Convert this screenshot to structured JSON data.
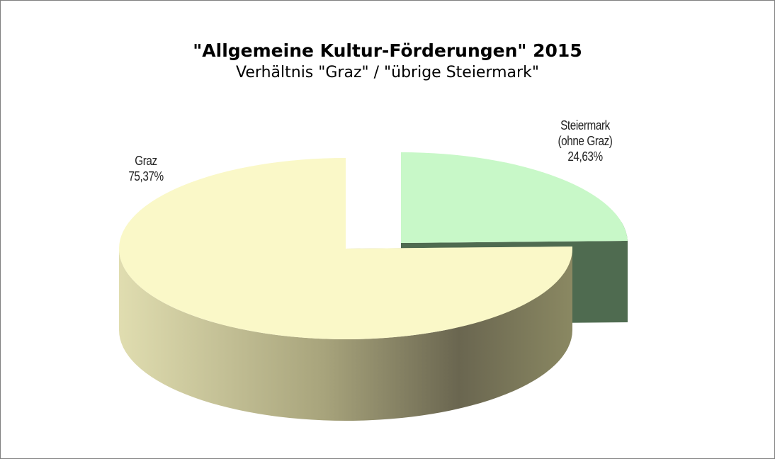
{
  "chart_data": {
    "type": "pie",
    "title": "\"Allgemeine Kultur-Förderungen\" 2015",
    "subtitle": "Verhältnis \"Graz\" / \"übrige Steiermark\"",
    "categories": [
      "Steiermark (ohne Graz)",
      "Graz"
    ],
    "values": [
      24.63,
      75.37
    ],
    "value_labels": [
      "24,63%",
      "75,37%"
    ],
    "colors": [
      "#c8f8c8",
      "#faf8c8"
    ]
  }
}
